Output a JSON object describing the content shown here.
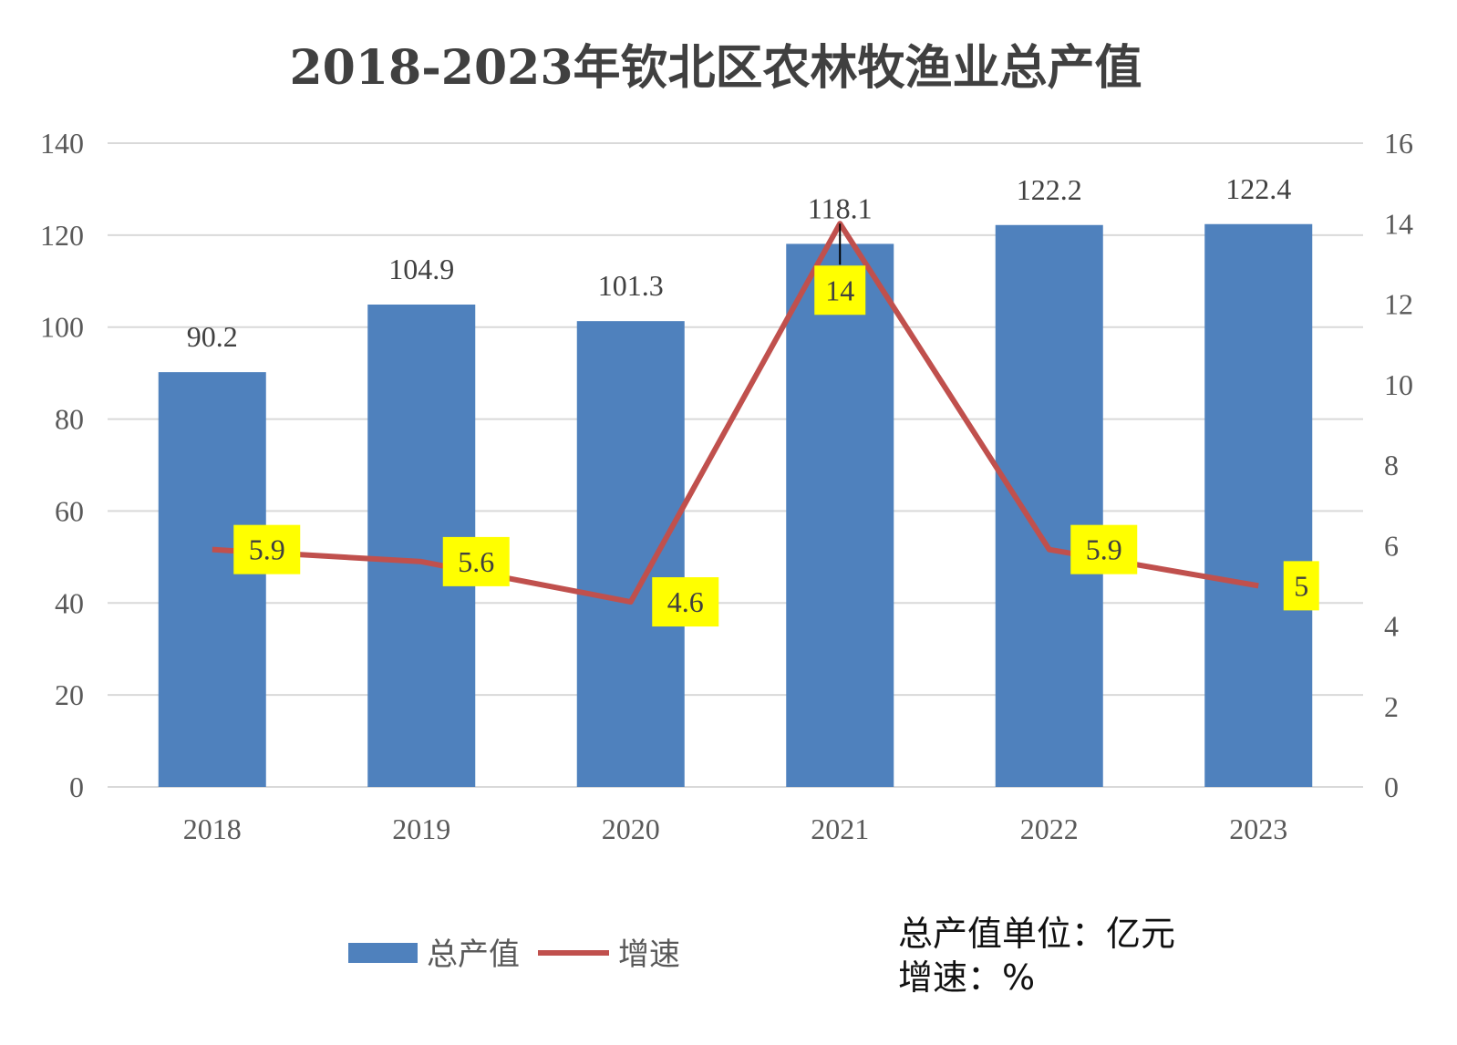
{
  "chart_data": {
    "type": "bar",
    "title": "2018-2023年钦北区农林牧渔业总产值",
    "categories": [
      "2018",
      "2019",
      "2020",
      "2021",
      "2022",
      "2023"
    ],
    "series": [
      {
        "name": "总产值",
        "type": "bar",
        "axis": "left",
        "color": "#4F81BD",
        "values": [
          90.2,
          104.9,
          101.3,
          118.1,
          122.2,
          122.4
        ]
      },
      {
        "name": "增速",
        "type": "line",
        "axis": "right",
        "color": "#C0504D",
        "values": [
          5.9,
          5.6,
          4.6,
          14,
          5.9,
          5
        ]
      }
    ],
    "ylim_left": [
      0,
      140
    ],
    "yticks_left": [
      0,
      20,
      40,
      60,
      80,
      100,
      120,
      140
    ],
    "ylim_right": [
      0,
      16
    ],
    "yticks_right": [
      0,
      2,
      4,
      6,
      8,
      10,
      12,
      14,
      16
    ],
    "grid": true,
    "legend_position": "bottom",
    "line_label_bg": "#FFFF00",
    "notes": [
      "总产值单位：亿元",
      "增速：%"
    ]
  }
}
